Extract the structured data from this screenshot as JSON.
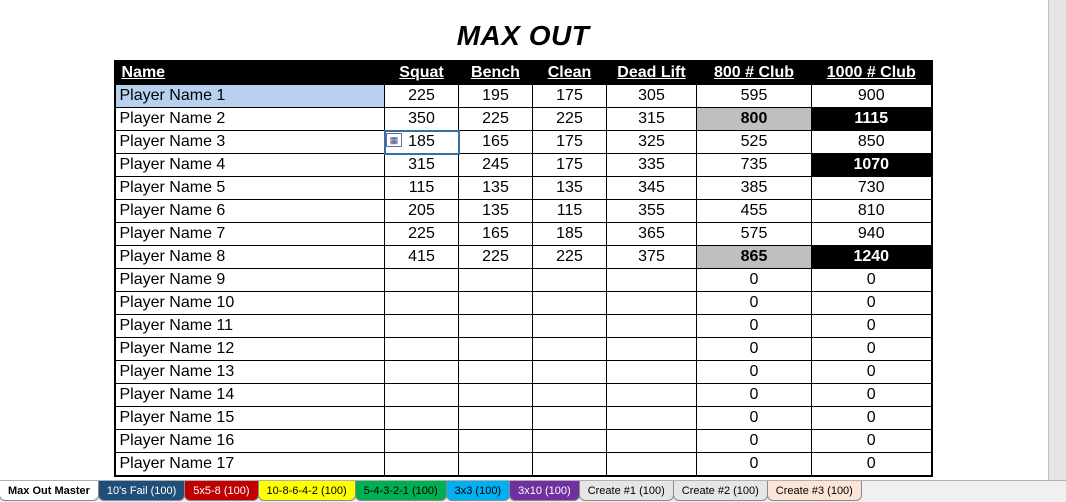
{
  "title": "MAX OUT",
  "columns": [
    "Name",
    "Squat",
    "Bench",
    "Clean",
    "Dead Lift",
    "800 # Club",
    "1000 # Club"
  ],
  "selected_row_index": 0,
  "editing_cell": {
    "row": 2,
    "col": "squat",
    "smarttag": true
  },
  "highlight": {
    "club800_bg": "#bfbfbf",
    "club1000_bg": "#000000",
    "club1000_fg": "#ffffff",
    "selected_bg": "#b8d1ef"
  },
  "rows": [
    {
      "name": "Player Name 1",
      "squat": "225",
      "bench": "195",
      "clean": "175",
      "dead": "305",
      "c800": "595",
      "c1000": "900",
      "h800": false,
      "h1000": false
    },
    {
      "name": "Player Name 2",
      "squat": "350",
      "bench": "225",
      "clean": "225",
      "dead": "315",
      "c800": "800",
      "c1000": "1115",
      "h800": true,
      "h1000": true
    },
    {
      "name": "Player Name 3",
      "squat": "185",
      "bench": "165",
      "clean": "175",
      "dead": "325",
      "c800": "525",
      "c1000": "850",
      "h800": false,
      "h1000": false
    },
    {
      "name": "Player Name 4",
      "squat": "315",
      "bench": "245",
      "clean": "175",
      "dead": "335",
      "c800": "735",
      "c1000": "1070",
      "h800": false,
      "h1000": true
    },
    {
      "name": "Player Name 5",
      "squat": "115",
      "bench": "135",
      "clean": "135",
      "dead": "345",
      "c800": "385",
      "c1000": "730",
      "h800": false,
      "h1000": false
    },
    {
      "name": "Player Name 6",
      "squat": "205",
      "bench": "135",
      "clean": "115",
      "dead": "355",
      "c800": "455",
      "c1000": "810",
      "h800": false,
      "h1000": false
    },
    {
      "name": "Player Name 7",
      "squat": "225",
      "bench": "165",
      "clean": "185",
      "dead": "365",
      "c800": "575",
      "c1000": "940",
      "h800": false,
      "h1000": false
    },
    {
      "name": "Player Name 8",
      "squat": "415",
      "bench": "225",
      "clean": "225",
      "dead": "375",
      "c800": "865",
      "c1000": "1240",
      "h800": true,
      "h1000": true
    },
    {
      "name": "Player Name 9",
      "squat": "",
      "bench": "",
      "clean": "",
      "dead": "",
      "c800": "0",
      "c1000": "0",
      "h800": false,
      "h1000": false
    },
    {
      "name": "Player Name 10",
      "squat": "",
      "bench": "",
      "clean": "",
      "dead": "",
      "c800": "0",
      "c1000": "0",
      "h800": false,
      "h1000": false
    },
    {
      "name": "Player Name 11",
      "squat": "",
      "bench": "",
      "clean": "",
      "dead": "",
      "c800": "0",
      "c1000": "0",
      "h800": false,
      "h1000": false
    },
    {
      "name": "Player Name 12",
      "squat": "",
      "bench": "",
      "clean": "",
      "dead": "",
      "c800": "0",
      "c1000": "0",
      "h800": false,
      "h1000": false
    },
    {
      "name": "Player Name 13",
      "squat": "",
      "bench": "",
      "clean": "",
      "dead": "",
      "c800": "0",
      "c1000": "0",
      "h800": false,
      "h1000": false
    },
    {
      "name": "Player Name 14",
      "squat": "",
      "bench": "",
      "clean": "",
      "dead": "",
      "c800": "0",
      "c1000": "0",
      "h800": false,
      "h1000": false
    },
    {
      "name": "Player Name 15",
      "squat": "",
      "bench": "",
      "clean": "",
      "dead": "",
      "c800": "0",
      "c1000": "0",
      "h800": false,
      "h1000": false
    },
    {
      "name": "Player Name 16",
      "squat": "",
      "bench": "",
      "clean": "",
      "dead": "",
      "c800": "0",
      "c1000": "0",
      "h800": false,
      "h1000": false
    },
    {
      "name": "Player Name 17",
      "squat": "",
      "bench": "",
      "clean": "",
      "dead": "",
      "c800": "0",
      "c1000": "0",
      "h800": false,
      "h1000": false
    }
  ],
  "tabs": [
    {
      "label": "Max Out Master",
      "bg": "#ffffff",
      "fg": "#000000",
      "active": true
    },
    {
      "label": "10's Fail (100)",
      "bg": "#1f4e79",
      "fg": "#ffffff",
      "active": false
    },
    {
      "label": "5x5-8 (100)",
      "bg": "#c00000",
      "fg": "#ffffff",
      "active": false
    },
    {
      "label": "10-8-6-4-2 (100)",
      "bg": "#ffff00",
      "fg": "#000000",
      "active": false
    },
    {
      "label": "5-4-3-2-1 (100)",
      "bg": "#00b050",
      "fg": "#000000",
      "active": false
    },
    {
      "label": "3x3 (100)",
      "bg": "#00b0f0",
      "fg": "#000000",
      "active": false
    },
    {
      "label": "3x10 (100)",
      "bg": "#7030a0",
      "fg": "#ffffff",
      "active": false
    },
    {
      "label": "Create #1 (100)",
      "bg": "#e7e6e6",
      "fg": "#000000",
      "active": false
    },
    {
      "label": "Create #2 (100)",
      "bg": "#e7e6e6",
      "fg": "#000000",
      "active": false
    },
    {
      "label": "Create #3 (100)",
      "bg": "#fce4d6",
      "fg": "#000000",
      "active": false
    }
  ]
}
